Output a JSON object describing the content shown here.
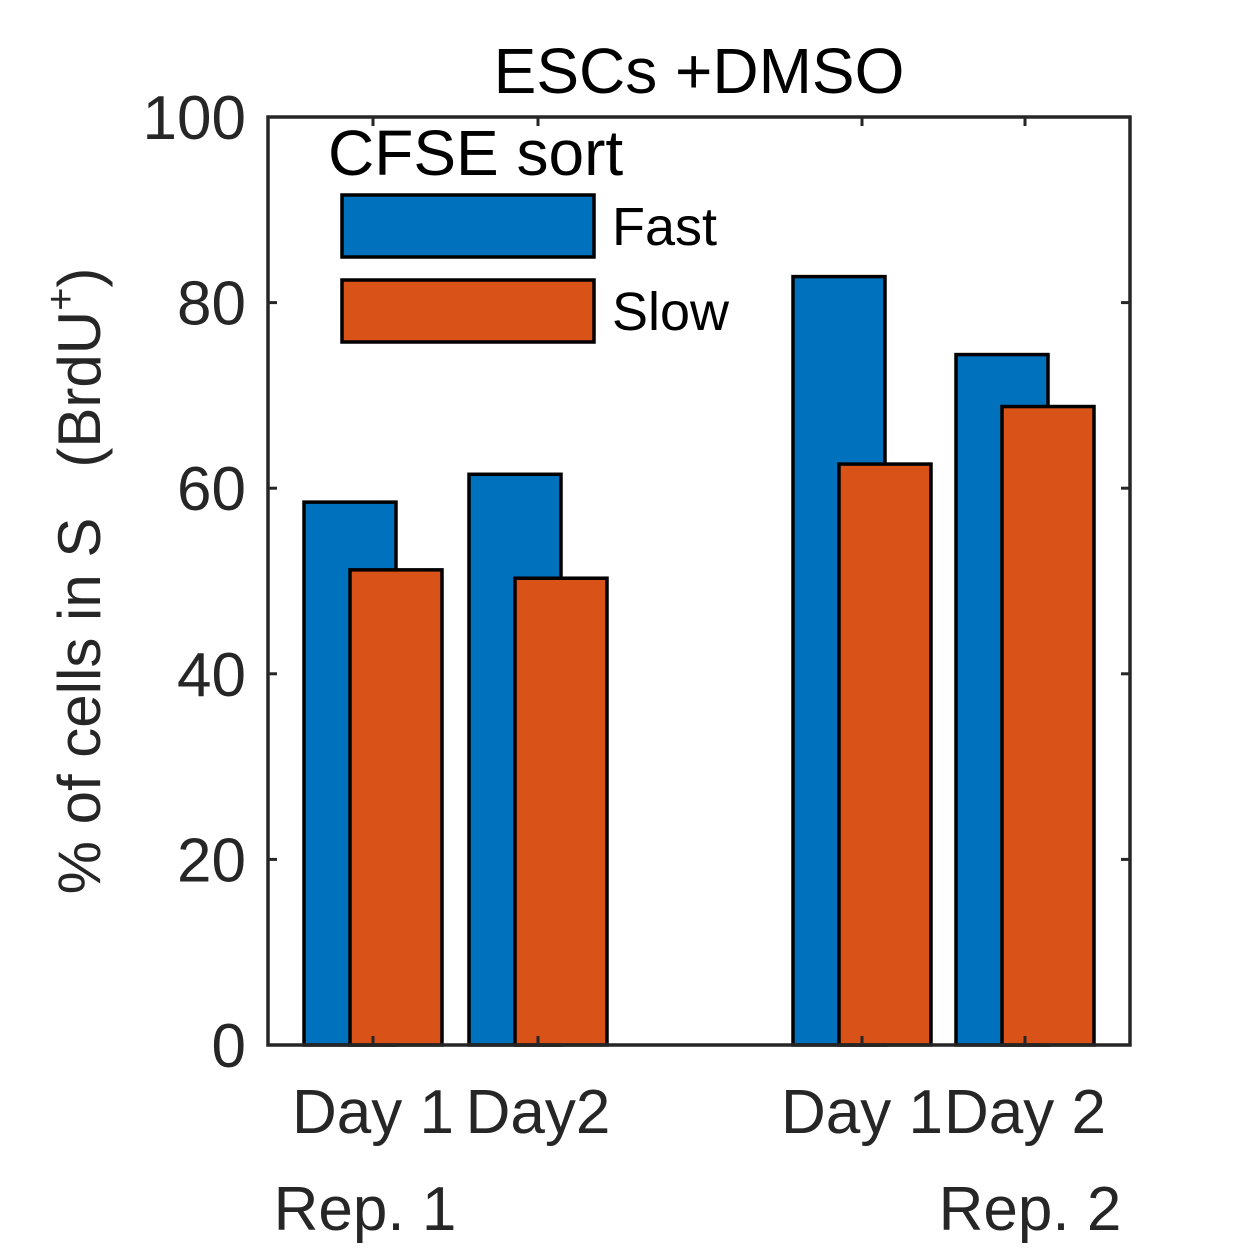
{
  "chart_data": {
    "type": "bar",
    "title": "ESCs +DMSO",
    "ylabel": "% of cells in S",
    "ylabel_paren": "(BrdU",
    "ylabel_sup": "+",
    "ylabel_close": ")",
    "ylim": [
      0,
      100
    ],
    "yticks": [
      "0",
      "20",
      "40",
      "60",
      "80",
      "100"
    ],
    "categories": [
      "Day 1",
      "Day2",
      "Day 1",
      "Day 2"
    ],
    "groups": [
      "Rep. 1",
      "Rep. 2"
    ],
    "legend_title": "CFSE sort",
    "legend_position": "top-left",
    "series": [
      {
        "name": "Fast",
        "color": "#0072BD",
        "values": [
          58.5,
          61.5,
          82.8,
          74.4
        ]
      },
      {
        "name": "Slow",
        "color": "#D95319",
        "values": [
          51.2,
          50.3,
          62.6,
          68.8
        ]
      }
    ]
  }
}
